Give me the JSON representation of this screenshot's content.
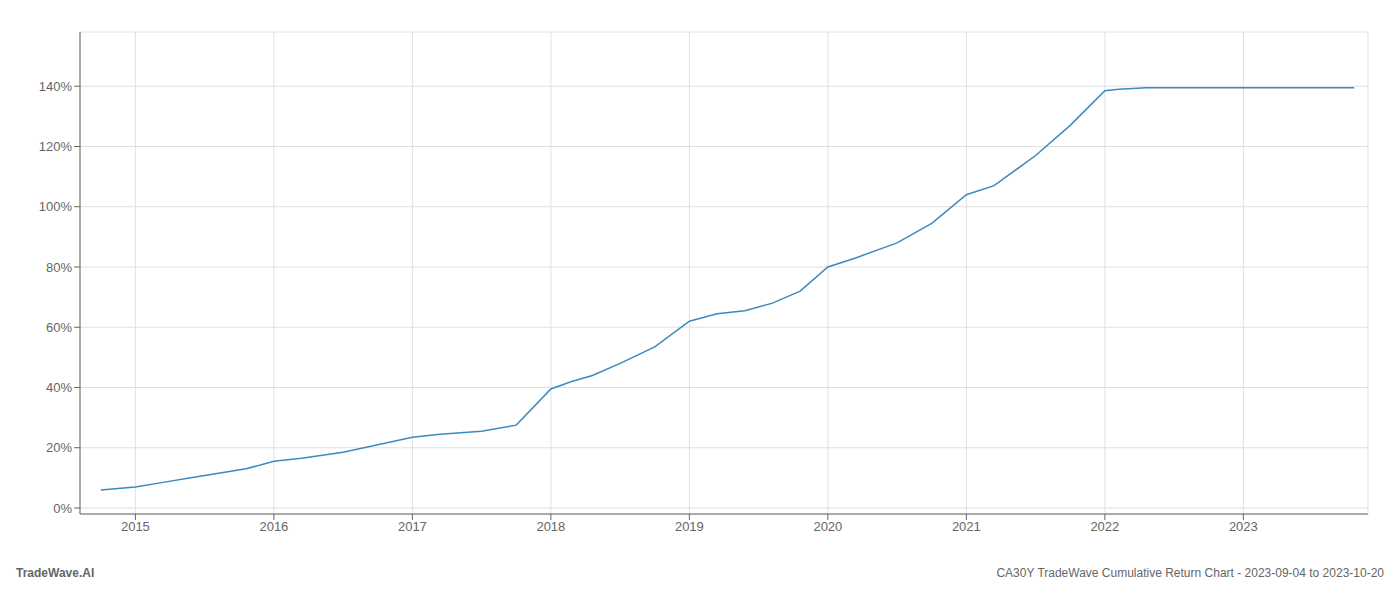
{
  "chart_data": {
    "type": "line",
    "title": "CA30Y TradeWave Cumulative Return Chart - 2023-09-04 to 2023-10-20",
    "annotations": [
      "TradeWave.AI"
    ],
    "x": [
      2014.75,
      2015.0,
      2015.2,
      2015.4,
      2015.6,
      2015.8,
      2016.0,
      2016.2,
      2016.5,
      2016.75,
      2017.0,
      2017.2,
      2017.5,
      2017.75,
      2018.0,
      2018.15,
      2018.3,
      2018.5,
      2018.75,
      2019.0,
      2019.2,
      2019.4,
      2019.6,
      2019.8,
      2020.0,
      2020.2,
      2020.5,
      2020.75,
      2021.0,
      2021.2,
      2021.5,
      2021.75,
      2022.0,
      2022.1,
      2022.3,
      2022.5,
      2022.75,
      2023.0,
      2023.5,
      2023.8
    ],
    "values": [
      0.06,
      0.07,
      0.085,
      0.1,
      0.115,
      0.13,
      0.155,
      0.165,
      0.185,
      0.21,
      0.235,
      0.245,
      0.255,
      0.275,
      0.395,
      0.42,
      0.44,
      0.48,
      0.535,
      0.62,
      0.645,
      0.655,
      0.68,
      0.72,
      0.8,
      0.83,
      0.88,
      0.945,
      1.04,
      1.07,
      1.17,
      1.27,
      1.385,
      1.39,
      1.395,
      1.395,
      1.395,
      1.395,
      1.395,
      1.395
    ],
    "color": "#3a8abf",
    "xlim": [
      2014.6,
      2023.9
    ],
    "ylim": [
      -0.02,
      1.58
    ],
    "xticks": [
      2015,
      2016,
      2017,
      2018,
      2019,
      2020,
      2021,
      2022,
      2023
    ],
    "yticks": [
      {
        "value": 0.0,
        "label": "0%"
      },
      {
        "value": 0.2,
        "label": "20%"
      },
      {
        "value": 0.4,
        "label": "40%"
      },
      {
        "value": 0.6,
        "label": "60%"
      },
      {
        "value": 0.8,
        "label": "80%"
      },
      {
        "value": 1.0,
        "label": "100%"
      },
      {
        "value": 1.2,
        "label": "120%"
      },
      {
        "value": 1.4,
        "label": "140%"
      }
    ],
    "grid": true
  }
}
